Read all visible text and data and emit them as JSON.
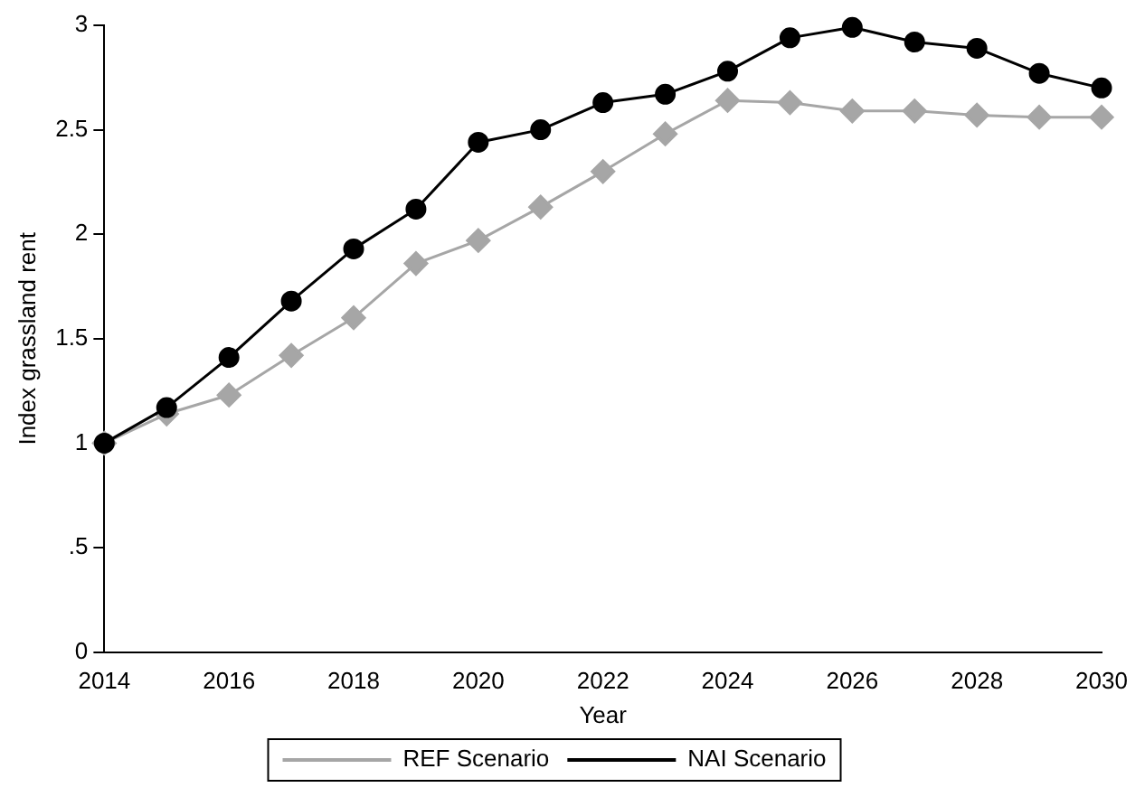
{
  "chart_data": {
    "type": "line",
    "xlabel": "Year",
    "ylabel": "Index grassland rent",
    "x": [
      2014,
      2015,
      2016,
      2017,
      2018,
      2019,
      2020,
      2021,
      2022,
      2023,
      2024,
      2025,
      2026,
      2027,
      2028,
      2029,
      2030
    ],
    "series": [
      {
        "name": "REF Scenario",
        "color": "#a6a6a6",
        "marker": "diamond",
        "values": [
          1.0,
          1.14,
          1.23,
          1.42,
          1.6,
          1.86,
          1.97,
          2.13,
          2.3,
          2.48,
          2.64,
          2.63,
          2.59,
          2.59,
          2.57,
          2.56,
          2.56
        ]
      },
      {
        "name": "NAI Scenario",
        "color": "#000000",
        "marker": "circle",
        "values": [
          1.0,
          1.17,
          1.41,
          1.68,
          1.93,
          2.12,
          2.44,
          2.5,
          2.63,
          2.67,
          2.78,
          2.94,
          2.99,
          2.92,
          2.89,
          2.77,
          2.7
        ]
      }
    ],
    "xlim": [
      2014,
      2030
    ],
    "xticks": [
      2014,
      2016,
      2018,
      2020,
      2022,
      2024,
      2026,
      2028,
      2030
    ],
    "ylim": [
      0,
      3
    ],
    "yticks": [
      0,
      {
        "value": 0.5,
        "label": ".5"
      },
      1,
      {
        "value": 1.5,
        "label": "1.5"
      },
      2,
      {
        "value": 2.5,
        "label": "2.5"
      },
      3
    ],
    "grid": false,
    "legend": "bottom"
  }
}
